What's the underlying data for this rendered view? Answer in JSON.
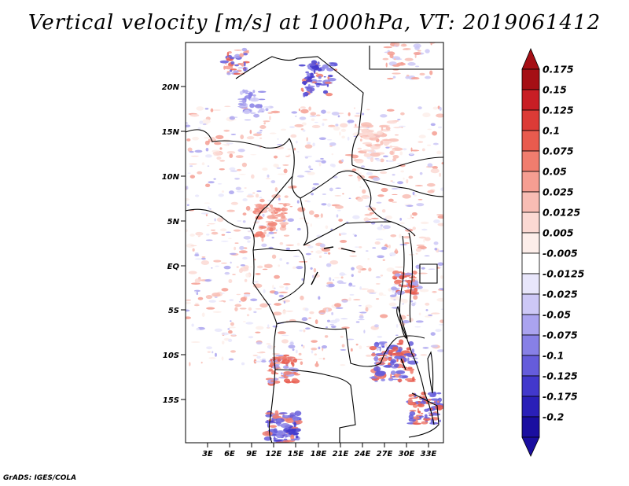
{
  "title": "Vertical velocity [m/s] at 1000hPa, VT: 2019061412",
  "credit": "GrADS: IGES/COLA",
  "map": {
    "lat_labels": [
      "20N",
      "15N",
      "10N",
      "5N",
      "EQ",
      "5S",
      "10S",
      "15S"
    ],
    "lon_labels": [
      "3E",
      "6E",
      "9E",
      "12E",
      "15E",
      "18E",
      "21E",
      "24E",
      "27E",
      "30E",
      "33E"
    ],
    "lat_range": [
      -20,
      25
    ],
    "lon_range": [
      0,
      35
    ]
  },
  "colorbar": {
    "levels": [
      "0.175",
      "0.15",
      "0.125",
      "0.1",
      "0.075",
      "0.05",
      "0.025",
      "0.0125",
      "0.005",
      "-0.005",
      "-0.0125",
      "-0.025",
      "-0.05",
      "-0.075",
      "-0.1",
      "-0.125",
      "-0.175",
      "-0.2"
    ],
    "colors": [
      "#a50f15",
      "#c81e25",
      "#dc3b36",
      "#e85b4e",
      "#f07d6e",
      "#f59e92",
      "#f8bdb4",
      "#fbd9d3",
      "#fdeeea",
      "#ffffff",
      "#e8e6fb",
      "#cdc8f6",
      "#aaa3ef",
      "#8780e6",
      "#655cdb",
      "#4238cc",
      "#2a1fb8",
      "#1a0ea0"
    ],
    "top_color": "#a50f15",
    "bottom_color": "#1a0ea0"
  }
}
